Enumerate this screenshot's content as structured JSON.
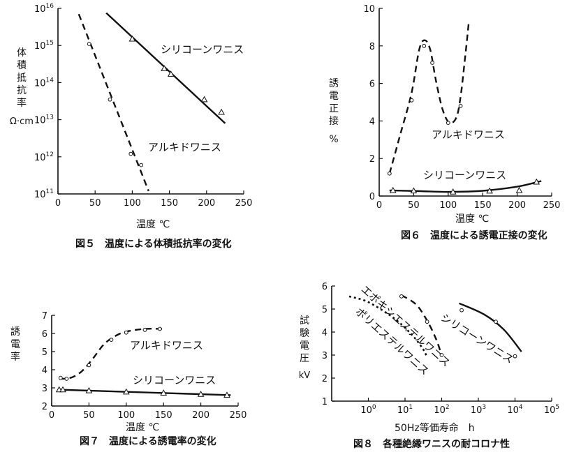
{
  "chart_data": [
    {
      "id": "fig5",
      "type": "line",
      "caption": "図５　温度による体積抵抗率の変化",
      "xlabel": "温度 ℃",
      "ylabel": [
        "体",
        "積",
        "抵",
        "抗",
        "率"
      ],
      "yunit": "Ω·cm",
      "xlim": [
        0,
        250
      ],
      "ylim": [
        100000000000.0,
        1e+16
      ],
      "yscale": "log",
      "xticks": [
        "0",
        "50",
        "100",
        "150",
        "200",
        "250"
      ],
      "yticks": [
        {
          "base": "10",
          "exp": "11",
          "value": 100000000000.0
        },
        {
          "base": "10",
          "exp": "12",
          "value": 1000000000000.0
        },
        {
          "base": "10",
          "exp": "13",
          "value": 10000000000000.0
        },
        {
          "base": "10",
          "exp": "14",
          "value": 100000000000000.0
        },
        {
          "base": "10",
          "exp": "15",
          "value": 1000000000000000.0
        },
        {
          "base": "10",
          "exp": "16",
          "value": 1e+16
        }
      ],
      "series": [
        {
          "name": "シリコーンワニス",
          "style": "solid",
          "marker": "triangle",
          "line": [
            [
              65,
              7500000000000000.0
            ],
            [
              225,
              8000000000000.0
            ]
          ],
          "points": [
            [
              100,
              1500000000000000.0
            ],
            [
              143,
              240000000000000.0
            ],
            [
              152,
              170000000000000.0
            ],
            [
              197,
              35000000000000.0
            ],
            [
              220,
              16000000000000.0
            ]
          ]
        },
        {
          "name": "アルキドワニス",
          "style": "dashed",
          "marker": "circle",
          "line": [
            [
              28,
              7000000000000000.0
            ],
            [
              122,
              120000000000.0
            ]
          ],
          "points": [
            [
              42,
              1100000000000000.0
            ],
            [
              70,
              35000000000000.0
            ],
            [
              98,
              1200000000000.0
            ],
            [
              112,
              600000000000.0
            ]
          ]
        }
      ]
    },
    {
      "id": "fig6",
      "type": "line",
      "caption": "図６　温度による誘電正接の変化",
      "xlabel": "温度 ℃",
      "ylabel": [
        "誘",
        "電",
        "正",
        "接"
      ],
      "yunit": "%",
      "xlim": [
        0,
        250
      ],
      "ylim": [
        0,
        10
      ],
      "xticks": [
        "0",
        "50",
        "100",
        "150",
        "200",
        "250"
      ],
      "yticks": [
        "0",
        "2",
        "4",
        "6",
        "8",
        "10"
      ],
      "series": [
        {
          "name": "アルキドワニス",
          "style": "dashed",
          "marker": "circle",
          "line": [
            [
              15,
              1.2
            ],
            [
              30,
              3.2
            ],
            [
              47,
              5.5
            ],
            [
              58,
              7.8
            ],
            [
              66,
              8.3
            ],
            [
              74,
              7.8
            ],
            [
              82,
              6.2
            ],
            [
              92,
              4.6
            ],
            [
              102,
              3.9
            ],
            [
              112,
              4.2
            ],
            [
              118,
              5.3
            ],
            [
              124,
              7.2
            ],
            [
              130,
              9.3
            ]
          ],
          "points": [
            [
              15,
              1.2
            ],
            [
              47,
              5.1
            ],
            [
              65,
              8.0
            ],
            [
              77,
              7.1
            ],
            [
              100,
              3.9
            ],
            [
              118,
              4.8
            ]
          ]
        },
        {
          "name": "シリコーンワニス",
          "style": "solid",
          "marker": "triangle",
          "line": [
            [
              15,
              0.3
            ],
            [
              60,
              0.26
            ],
            [
              100,
              0.22
            ],
            [
              150,
              0.28
            ],
            [
              200,
              0.5
            ],
            [
              235,
              0.8
            ]
          ],
          "points": [
            [
              20,
              0.3
            ],
            [
              50,
              0.28
            ],
            [
              107,
              0.22
            ],
            [
              160,
              0.27
            ],
            [
              203,
              0.3
            ],
            [
              228,
              0.75
            ]
          ]
        }
      ]
    },
    {
      "id": "fig7",
      "type": "line",
      "caption": "図７　温度による誘電率の変化",
      "xlabel": "温度 ℃",
      "ylabel": [
        "誘",
        "電",
        "率"
      ],
      "xlim": [
        0,
        250
      ],
      "ylim": [
        2,
        7
      ],
      "xticks": [
        "0",
        "50",
        "100",
        "150",
        "200",
        "250"
      ],
      "yticks": [
        "2",
        "3",
        "4",
        "5",
        "6",
        "7"
      ],
      "series": [
        {
          "name": "アルキドワニス",
          "style": "dashed",
          "marker": "circle",
          "line": [
            [
              10,
              3.5
            ],
            [
              25,
              3.55
            ],
            [
              40,
              3.9
            ],
            [
              55,
              4.6
            ],
            [
              70,
              5.4
            ],
            [
              85,
              5.85
            ],
            [
              100,
              6.1
            ],
            [
              125,
              6.25
            ],
            [
              150,
              6.25
            ]
          ],
          "points": [
            [
              12,
              3.55
            ],
            [
              20,
              3.5
            ],
            [
              50,
              4.25
            ],
            [
              80,
              5.65
            ],
            [
              100,
              6.05
            ],
            [
              125,
              6.2
            ],
            [
              145,
              6.25
            ]
          ]
        },
        {
          "name": "シリコーンワニス",
          "style": "solid",
          "marker": "triangle",
          "line": [
            [
              10,
              2.9
            ],
            [
              100,
              2.78
            ],
            [
              240,
              2.6
            ]
          ],
          "points": [
            [
              10,
              2.9
            ],
            [
              15,
              2.9
            ],
            [
              50,
              2.85
            ],
            [
              100,
              2.78
            ],
            [
              150,
              2.72
            ],
            [
              200,
              2.65
            ],
            [
              235,
              2.6
            ]
          ]
        }
      ]
    },
    {
      "id": "fig8",
      "type": "line",
      "caption": "図８　各種絶縁ワニスの耐コロナ性",
      "xlabel": "50Hz等価寿命　h",
      "ylabel": [
        "試",
        "験",
        "電",
        "圧"
      ],
      "yunit": "kV",
      "xscale": "log",
      "xlim": [
        0.1,
        100000
      ],
      "ylim": [
        1,
        6
      ],
      "xticks": [
        {
          "base": "10",
          "exp": "0",
          "value": 1
        },
        {
          "base": "10",
          "exp": "1",
          "value": 10
        },
        {
          "base": "10",
          "exp": "2",
          "value": 100
        },
        {
          "base": "10",
          "exp": "3",
          "value": 1000
        },
        {
          "base": "10",
          "exp": "4",
          "value": 10000
        },
        {
          "base": "10",
          "exp": "5",
          "value": 100000
        }
      ],
      "yticks": [
        "1",
        "2",
        "3",
        "4",
        "5",
        "6"
      ],
      "series": [
        {
          "name": "エポキシエステルワニス",
          "style": "dashed",
          "marker": "circle",
          "line": [
            [
              8,
              5.6
            ],
            [
              20,
              5.2
            ],
            [
              40,
              4.5
            ],
            [
              70,
              3.7
            ],
            [
              100,
              3.0
            ]
          ],
          "points": [
            [
              8,
              5.55
            ],
            [
              40,
              4.45
            ],
            [
              100,
              3.0
            ]
          ]
        },
        {
          "name": "ポリエステルワニス",
          "style": "dotted",
          "marker": "none",
          "line": [
            [
              0.3,
              5.55
            ],
            [
              1,
              5.3
            ],
            [
              5,
              4.6
            ],
            [
              15,
              3.9
            ],
            [
              30,
              3.3
            ],
            [
              40,
              2.9
            ]
          ],
          "points": []
        },
        {
          "name": "シリコーンワニス",
          "style": "solid",
          "marker": "circle",
          "line": [
            [
              300,
              5.25
            ],
            [
              1500,
              4.75
            ],
            [
              5000,
              4.1
            ],
            [
              15000,
              3.15
            ]
          ],
          "points": [
            [
              350,
              4.95
            ],
            [
              3000,
              4.45
            ],
            [
              10000,
              2.95
            ]
          ]
        }
      ]
    }
  ]
}
